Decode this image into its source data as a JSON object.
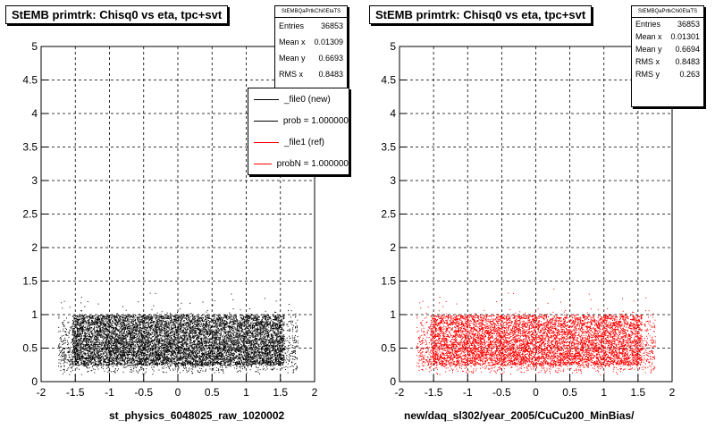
{
  "chart_data": [
    {
      "type": "scatter",
      "title": "StEMB primtrk: Chisq0 vs eta, tpc+svt",
      "xlabel": "st_physics_6048025_raw_1020002",
      "ylabel": "",
      "xlim": [
        -2,
        2
      ],
      "ylim": [
        0,
        5
      ],
      "xticks": [
        "-2",
        "-1.5",
        "-1",
        "-0.5",
        "0",
        "0.5",
        "1",
        "1.5",
        "2"
      ],
      "yticks": [
        "0",
        "0.5",
        "1",
        "1.5",
        "2",
        "2.5",
        "3",
        "3.5",
        "4",
        "4.5",
        "5"
      ],
      "grid": true,
      "marker_color": "#000000",
      "core_region": {
        "x": [
          -1.55,
          1.55
        ],
        "y": [
          0.25,
          1.0
        ]
      },
      "stats": {
        "name": "StEMBQaPrtkChi0EtaTS",
        "entries_label": "Entries",
        "entries": "36853",
        "meanx_label": "Mean x",
        "meanx": "0.01309",
        "meany_label": "Mean y",
        "meany": "0.6693",
        "rmsx_label": "RMS x",
        "rmsx": "0.8483"
      },
      "legend": {
        "placement": "top-right",
        "entries": [
          {
            "label": "_file0 (new)",
            "color": "#000000"
          },
          {
            "label": "prob = 1.000000",
            "color": "#000000"
          },
          {
            "label": "_file1 (ref)",
            "color": "#ff0000"
          },
          {
            "label": "probN = 1.000000",
            "color": "#ff0000"
          }
        ]
      }
    },
    {
      "type": "scatter",
      "title": "StEMB primtrk: Chisq0 vs eta, tpc+svt",
      "xlabel": "new/daq_sl302/year_2005/CuCu200_MinBias/",
      "ylabel": "",
      "xlim": [
        -2,
        2
      ],
      "ylim": [
        0,
        5
      ],
      "xticks": [
        "-2",
        "-1.5",
        "-1",
        "-0.5",
        "0",
        "0.5",
        "1",
        "1.5",
        "2"
      ],
      "yticks": [
        "0",
        "0.5",
        "1",
        "1.5",
        "2",
        "2.5",
        "3",
        "3.5",
        "4",
        "4.5",
        "5"
      ],
      "grid": true,
      "marker_color": "#ff0000",
      "core_region": {
        "x": [
          -1.55,
          1.55
        ],
        "y": [
          0.25,
          1.0
        ]
      },
      "stats": {
        "name": "StEMBQaPrtkChi0EtaTS",
        "entries_label": "Entries",
        "entries": "36853",
        "meanx_label": "Mean x",
        "meanx": "0.01301",
        "meany_label": "Mean y",
        "meany": "0.6694",
        "rmsx_label": "RMS x",
        "rmsx": "0.8483",
        "rmsy_label": "RMS y",
        "rmsy": "0.263"
      }
    }
  ]
}
